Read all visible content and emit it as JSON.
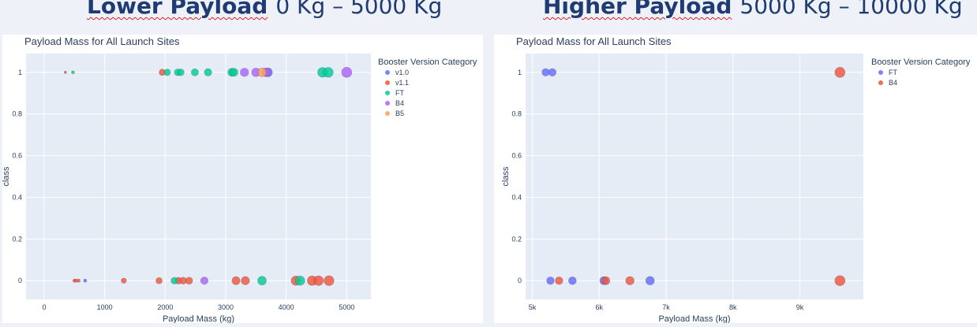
{
  "headings": {
    "left": {
      "bold": "Lower Payload",
      "range": "0 Kg – 5000 Kg"
    },
    "right": {
      "bold": "Higher Payload",
      "range": "5000 Kg – 10000 Kg"
    }
  },
  "chart_data": [
    {
      "type": "scatter",
      "title": "Payload Mass for All Launch Sites",
      "xlabel": "Payload Mass (kg)",
      "ylabel": "class",
      "xlim": [
        -300,
        5400
      ],
      "ylim": [
        -0.09,
        1.09
      ],
      "x_ticks": [
        0,
        1000,
        2000,
        3000,
        4000,
        5000
      ],
      "x_tick_labels": [
        "0",
        "1000",
        "2000",
        "3000",
        "4000",
        "5000"
      ],
      "y_ticks": [
        0,
        0.2,
        0.4,
        0.6,
        0.8,
        1
      ],
      "y_tick_labels": [
        "0",
        "0.2",
        "0.4",
        "0.6",
        "0.8",
        "1"
      ],
      "grid": true,
      "legend_title": "Booster Version Category",
      "legend_position": "right",
      "colors": {
        "v1.0": "#636efa",
        "v1.1": "#ef553b",
        "FT": "#00cc96",
        "B4": "#ab63fa",
        "B5": "#ffa15a"
      },
      "series": [
        {
          "name": "v1.0",
          "points": [
            {
              "x": 677,
              "y": 0,
              "size": 500
            },
            {
              "x": 3700,
              "y": 1,
              "size": 3700
            }
          ]
        },
        {
          "name": "v1.1",
          "points": [
            {
              "x": 350,
              "y": 1,
              "size": 300
            },
            {
              "x": 500,
              "y": 0,
              "size": 500
            },
            {
              "x": 525,
              "y": 0,
              "size": 500
            },
            {
              "x": 570,
              "y": 0,
              "size": 500
            },
            {
              "x": 1316,
              "y": 0,
              "size": 1300
            },
            {
              "x": 1898,
              "y": 0,
              "size": 1900
            },
            {
              "x": 1952,
              "y": 1,
              "size": 1950
            },
            {
              "x": 2216,
              "y": 0,
              "size": 2200
            },
            {
              "x": 2296,
              "y": 0,
              "size": 2300
            },
            {
              "x": 2395,
              "y": 0,
              "size": 2400
            },
            {
              "x": 3170,
              "y": 0,
              "size": 3170
            },
            {
              "x": 3325,
              "y": 0,
              "size": 3300
            },
            {
              "x": 4159,
              "y": 0,
              "size": 4150
            },
            {
              "x": 4428,
              "y": 0,
              "size": 4400
            },
            {
              "x": 4535,
              "y": 0,
              "size": 4500
            },
            {
              "x": 4707,
              "y": 0,
              "size": 4700
            }
          ]
        },
        {
          "name": "FT",
          "points": [
            {
              "x": 475,
              "y": 1,
              "size": 475
            },
            {
              "x": 2034,
              "y": 1,
              "size": 2034
            },
            {
              "x": 2150,
              "y": 0,
              "size": 2150
            },
            {
              "x": 2205,
              "y": 1,
              "size": 2205
            },
            {
              "x": 2257,
              "y": 1,
              "size": 2257
            },
            {
              "x": 2490,
              "y": 1,
              "size": 2490
            },
            {
              "x": 2708,
              "y": 1,
              "size": 2708
            },
            {
              "x": 3100,
              "y": 1,
              "size": 3100
            },
            {
              "x": 3136,
              "y": 1,
              "size": 3136
            },
            {
              "x": 3600,
              "y": 0,
              "size": 3600
            },
            {
              "x": 4230,
              "y": 0,
              "size": 4230
            },
            {
              "x": 4600,
              "y": 1,
              "size": 4600
            },
            {
              "x": 4696,
              "y": 1,
              "size": 4696
            }
          ]
        },
        {
          "name": "B4",
          "points": [
            {
              "x": 2647,
              "y": 0,
              "size": 2647
            },
            {
              "x": 3310,
              "y": 1,
              "size": 3310
            },
            {
              "x": 3500,
              "y": 1,
              "size": 3500
            },
            {
              "x": 3669,
              "y": 1,
              "size": 3669
            },
            {
              "x": 5000,
              "y": 1,
              "size": 5000
            }
          ]
        },
        {
          "name": "B5",
          "points": [
            {
              "x": 3600,
              "y": 1,
              "size": 3600
            }
          ]
        }
      ]
    },
    {
      "type": "scatter",
      "title": "Payload Mass for All Launch Sites",
      "xlabel": "Payload Mass (kg)",
      "ylabel": "class",
      "xlim": [
        4900,
        9950
      ],
      "ylim": [
        -0.09,
        1.09
      ],
      "x_ticks": [
        5000,
        6000,
        7000,
        8000,
        9000
      ],
      "x_tick_labels": [
        "5k",
        "6k",
        "7k",
        "8k",
        "9k"
      ],
      "y_ticks": [
        0,
        0.2,
        0.4,
        0.6,
        0.8,
        1
      ],
      "y_tick_labels": [
        "0",
        "0.2",
        "0.4",
        "0.6",
        "0.8",
        "1"
      ],
      "grid": true,
      "legend_title": "Booster Version Category",
      "legend_position": "right",
      "colors": {
        "FT": "#636efa",
        "B4": "#ef553b"
      },
      "series": [
        {
          "name": "FT",
          "points": [
            {
              "x": 5200,
              "y": 1,
              "size": 5200
            },
            {
              "x": 5300,
              "y": 1,
              "size": 5300
            },
            {
              "x": 5271,
              "y": 0,
              "size": 5271
            },
            {
              "x": 5600,
              "y": 0,
              "size": 5600
            },
            {
              "x": 6070,
              "y": 0,
              "size": 6070
            },
            {
              "x": 6761,
              "y": 0,
              "size": 6761
            }
          ]
        },
        {
          "name": "B4",
          "points": [
            {
              "x": 5400,
              "y": 0,
              "size": 5400
            },
            {
              "x": 6100,
              "y": 0,
              "size": 6100
            },
            {
              "x": 6460,
              "y": 0,
              "size": 6460
            },
            {
              "x": 9600,
              "y": 1,
              "size": 9600
            },
            {
              "x": 9600,
              "y": 0,
              "size": 9600
            }
          ]
        }
      ]
    }
  ]
}
